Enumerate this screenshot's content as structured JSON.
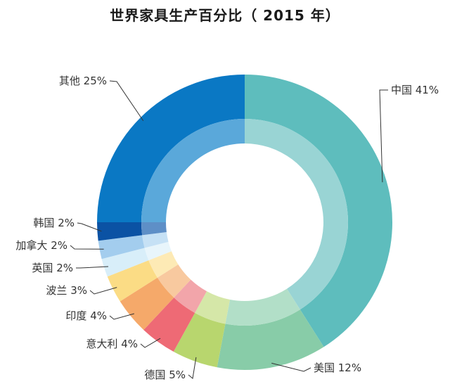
{
  "chart_data": {
    "type": "pie",
    "variant": "donut",
    "title": "世界家具生产百分比（ 2015 年）",
    "slices": [
      {
        "label": "中国",
        "value": 41,
        "display": "中国 41%",
        "color": "#5ebdbd",
        "inner_color": "#99d4d4",
        "label_side": "right"
      },
      {
        "label": "美国",
        "value": 12,
        "display": "美国 12%",
        "color": "#88cca8",
        "inner_color": "#b2dfc8",
        "label_side": "right"
      },
      {
        "label": "德国",
        "value": 5,
        "display": "德国 5%",
        "color": "#b8d66e",
        "inner_color": "#d5e7a8",
        "label_side": "left"
      },
      {
        "label": "意大利",
        "value": 4,
        "display": "意大利 4%",
        "color": "#ee6a75",
        "inner_color": "#f2a5aa",
        "label_side": "left"
      },
      {
        "label": "印度",
        "value": 4,
        "display": "印度 4%",
        "color": "#f5a96a",
        "inner_color": "#f8c99f",
        "label_side": "left"
      },
      {
        "label": "波兰",
        "value": 3,
        "display": "波兰 3%",
        "color": "#fbdc85",
        "inner_color": "#fdeab5",
        "label_side": "left"
      },
      {
        "label": "英国",
        "value": 2,
        "display": "英国 2%",
        "color": "#d8eef9",
        "inner_color": "#e8f5fb",
        "label_side": "left"
      },
      {
        "label": "加拿大",
        "value": 2,
        "display": "加拿大 2%",
        "color": "#a3cdee",
        "inner_color": "#c6e1f5",
        "label_side": "left"
      },
      {
        "label": "韩国",
        "value": 2,
        "display": "韩国 2%",
        "color": "#0b52a4",
        "inner_color": "#5e8fc7",
        "label_side": "left"
      },
      {
        "label": "其他",
        "value": 25,
        "display": "其他 25%",
        "color": "#0a78c4",
        "inner_color": "#5aa8da",
        "label_side": "left"
      }
    ]
  }
}
